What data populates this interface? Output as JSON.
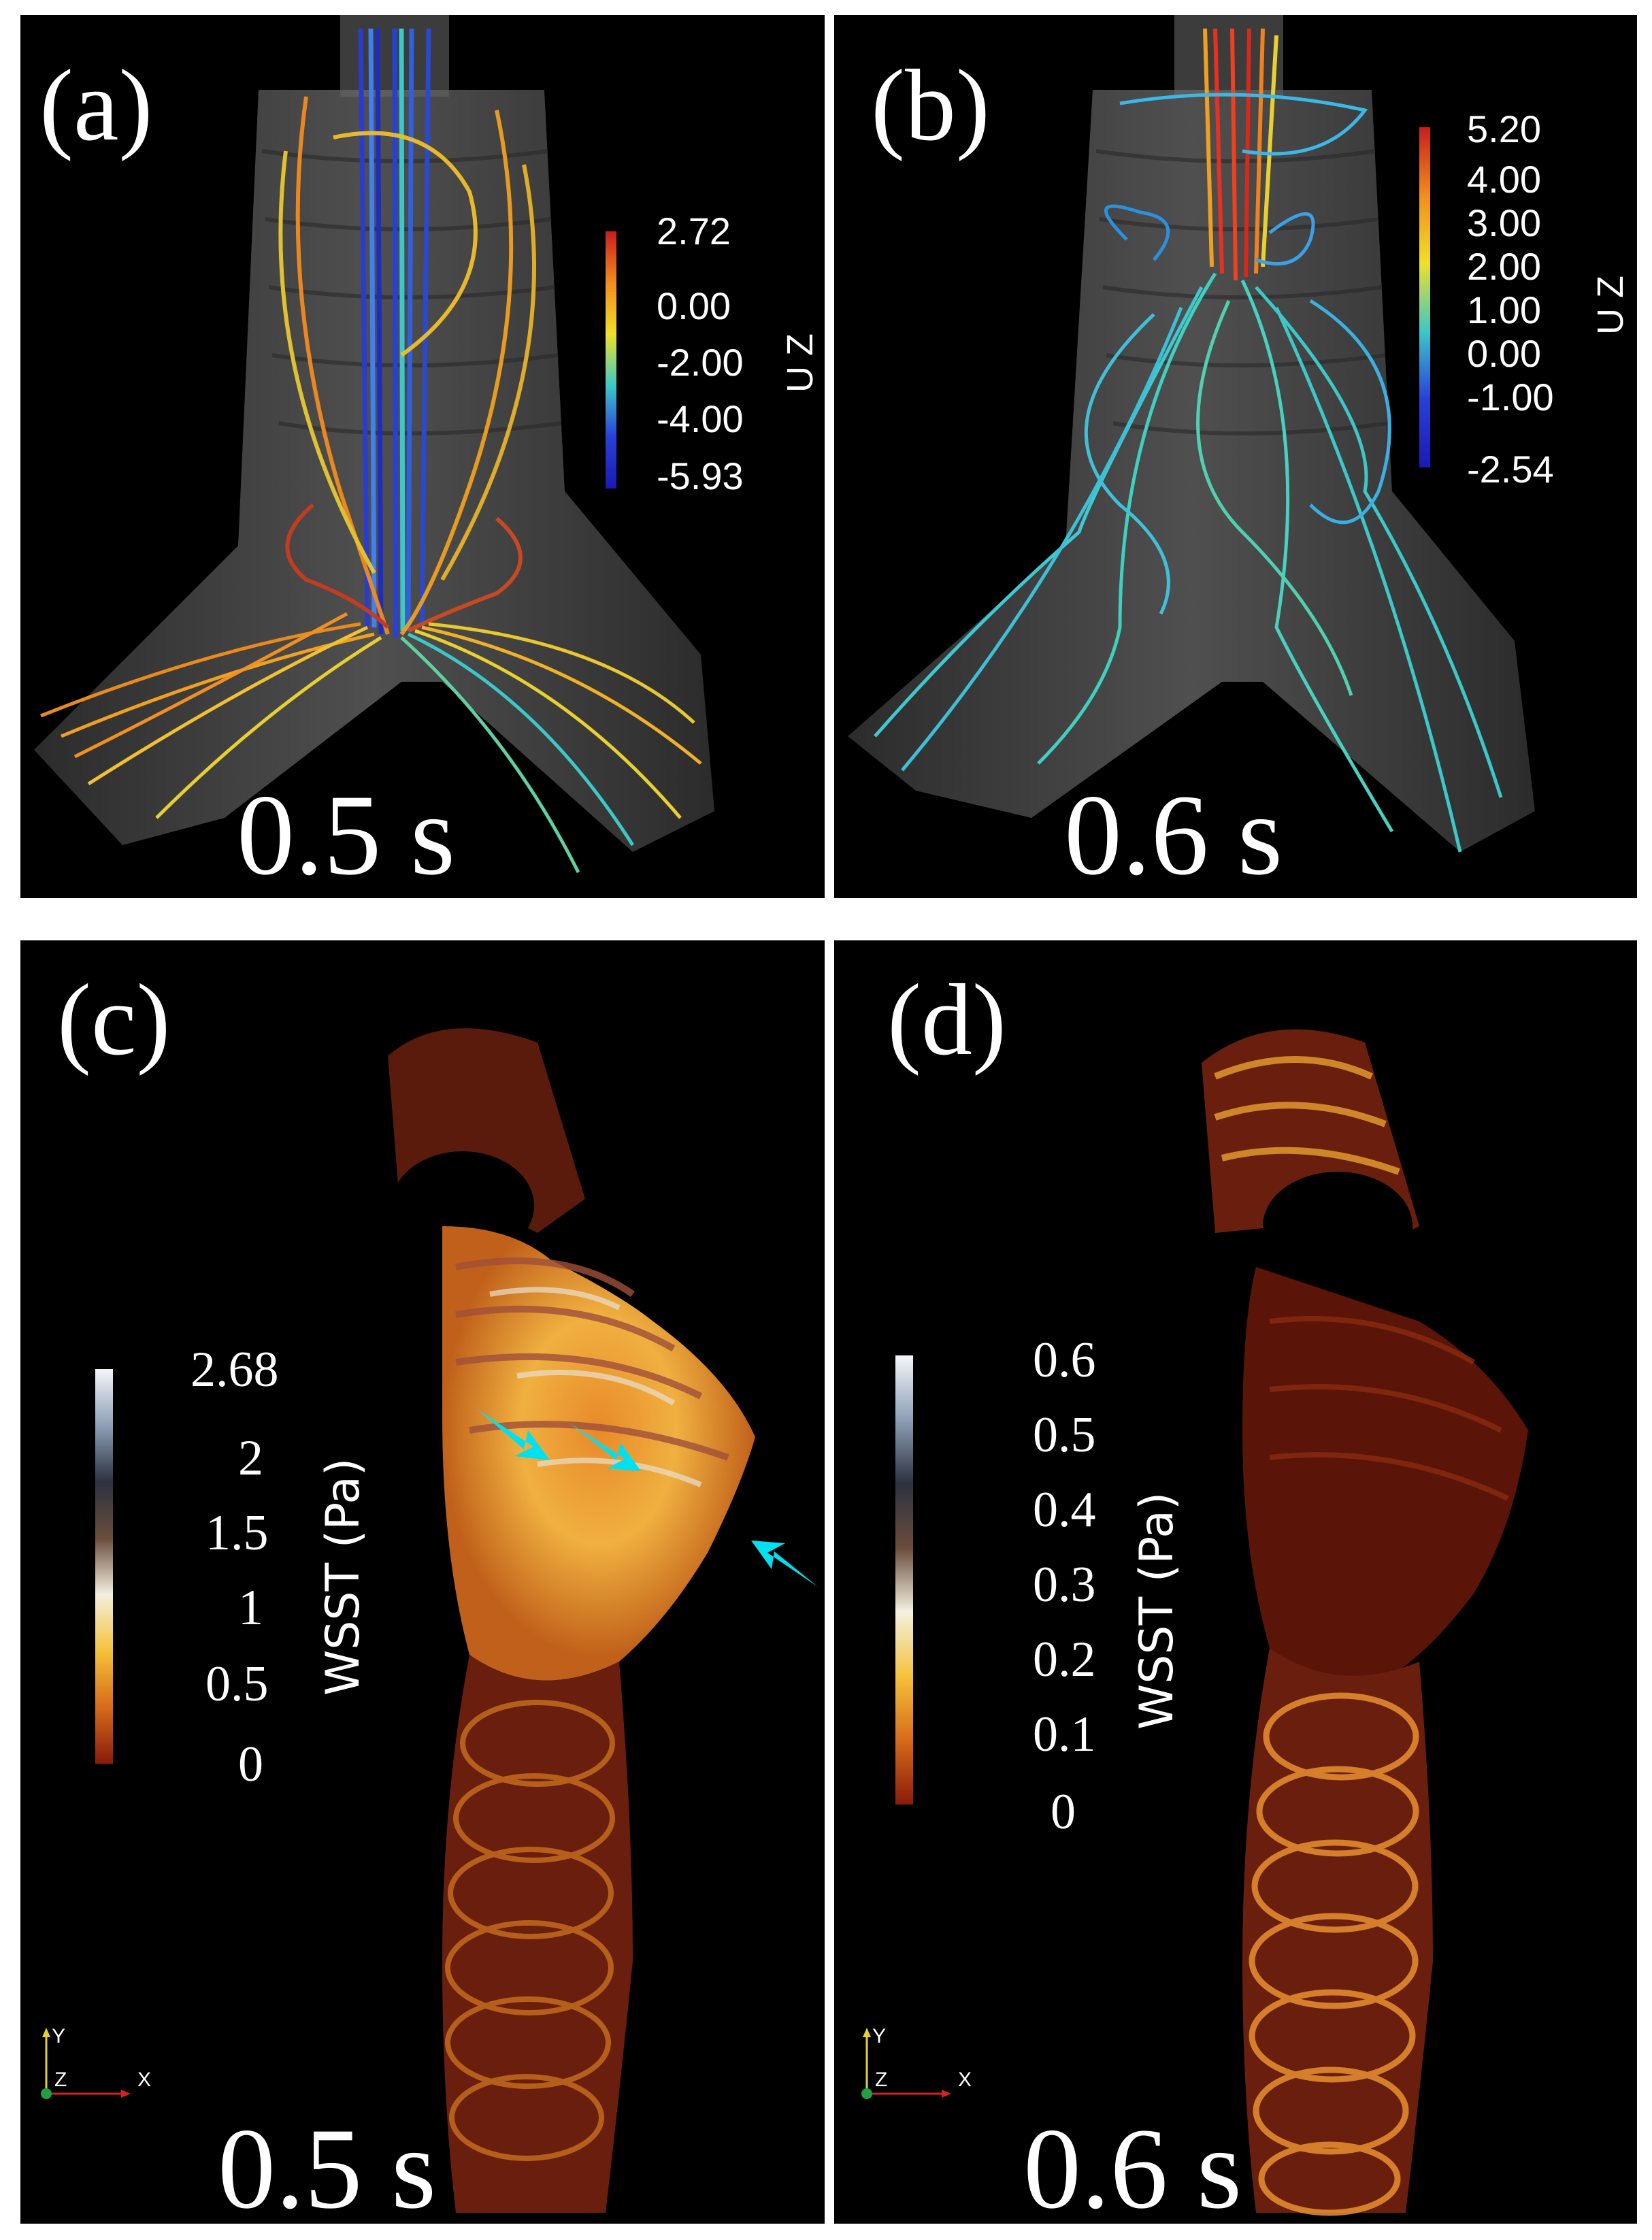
{
  "panels": {
    "a": {
      "label": "(a)",
      "time": "0.5 s",
      "colorbar": {
        "title": "U Z",
        "ticks": [
          "2.72",
          "0.00",
          "-2.00",
          "-4.00",
          "-5.93"
        ],
        "colors": [
          "#c81e1e",
          "#f28c1e",
          "#f0e028",
          "#3cc8c8",
          "#2840d8",
          "#1a1ab4"
        ]
      }
    },
    "b": {
      "label": "(b)",
      "time": "0.6 s",
      "colorbar": {
        "title": "U Z",
        "ticks": [
          "5.20",
          "4.00",
          "3.00",
          "2.00",
          "1.00",
          "0.00",
          "-1.00",
          "-2.54"
        ],
        "colors": [
          "#c81e1e",
          "#f28c1e",
          "#f0e028",
          "#3cc8c8",
          "#2840d8",
          "#1a1ab4"
        ]
      }
    },
    "c": {
      "label": "(c)",
      "time": "0.5 s",
      "colorbar": {
        "title": "WSST (Pa)",
        "ticks": [
          "2.68",
          "2",
          "1.5",
          "1",
          "0.5",
          "0"
        ],
        "colors": [
          "#f4f6fa",
          "#8e9fb8",
          "#2c3240",
          "#6b4c3c",
          "#f4f0e0",
          "#f5c23a",
          "#d76a1a",
          "#8a1a0a"
        ]
      },
      "axes": {
        "y": "Y",
        "z": "Z",
        "x": "X"
      }
    },
    "d": {
      "label": "(d)",
      "time": "0.6 s",
      "colorbar": {
        "title": "WSST (Pa)",
        "ticks": [
          "0.6",
          "0.5",
          "0.4",
          "0.3",
          "0.2",
          "0.1",
          "0"
        ],
        "colors": [
          "#f4f6fa",
          "#8e9fb8",
          "#2c3240",
          "#6b4c3c",
          "#f4f0e0",
          "#f5c23a",
          "#d76a1a",
          "#8a1a0a"
        ]
      },
      "axes": {
        "y": "Y",
        "z": "Z",
        "x": "X"
      }
    }
  }
}
